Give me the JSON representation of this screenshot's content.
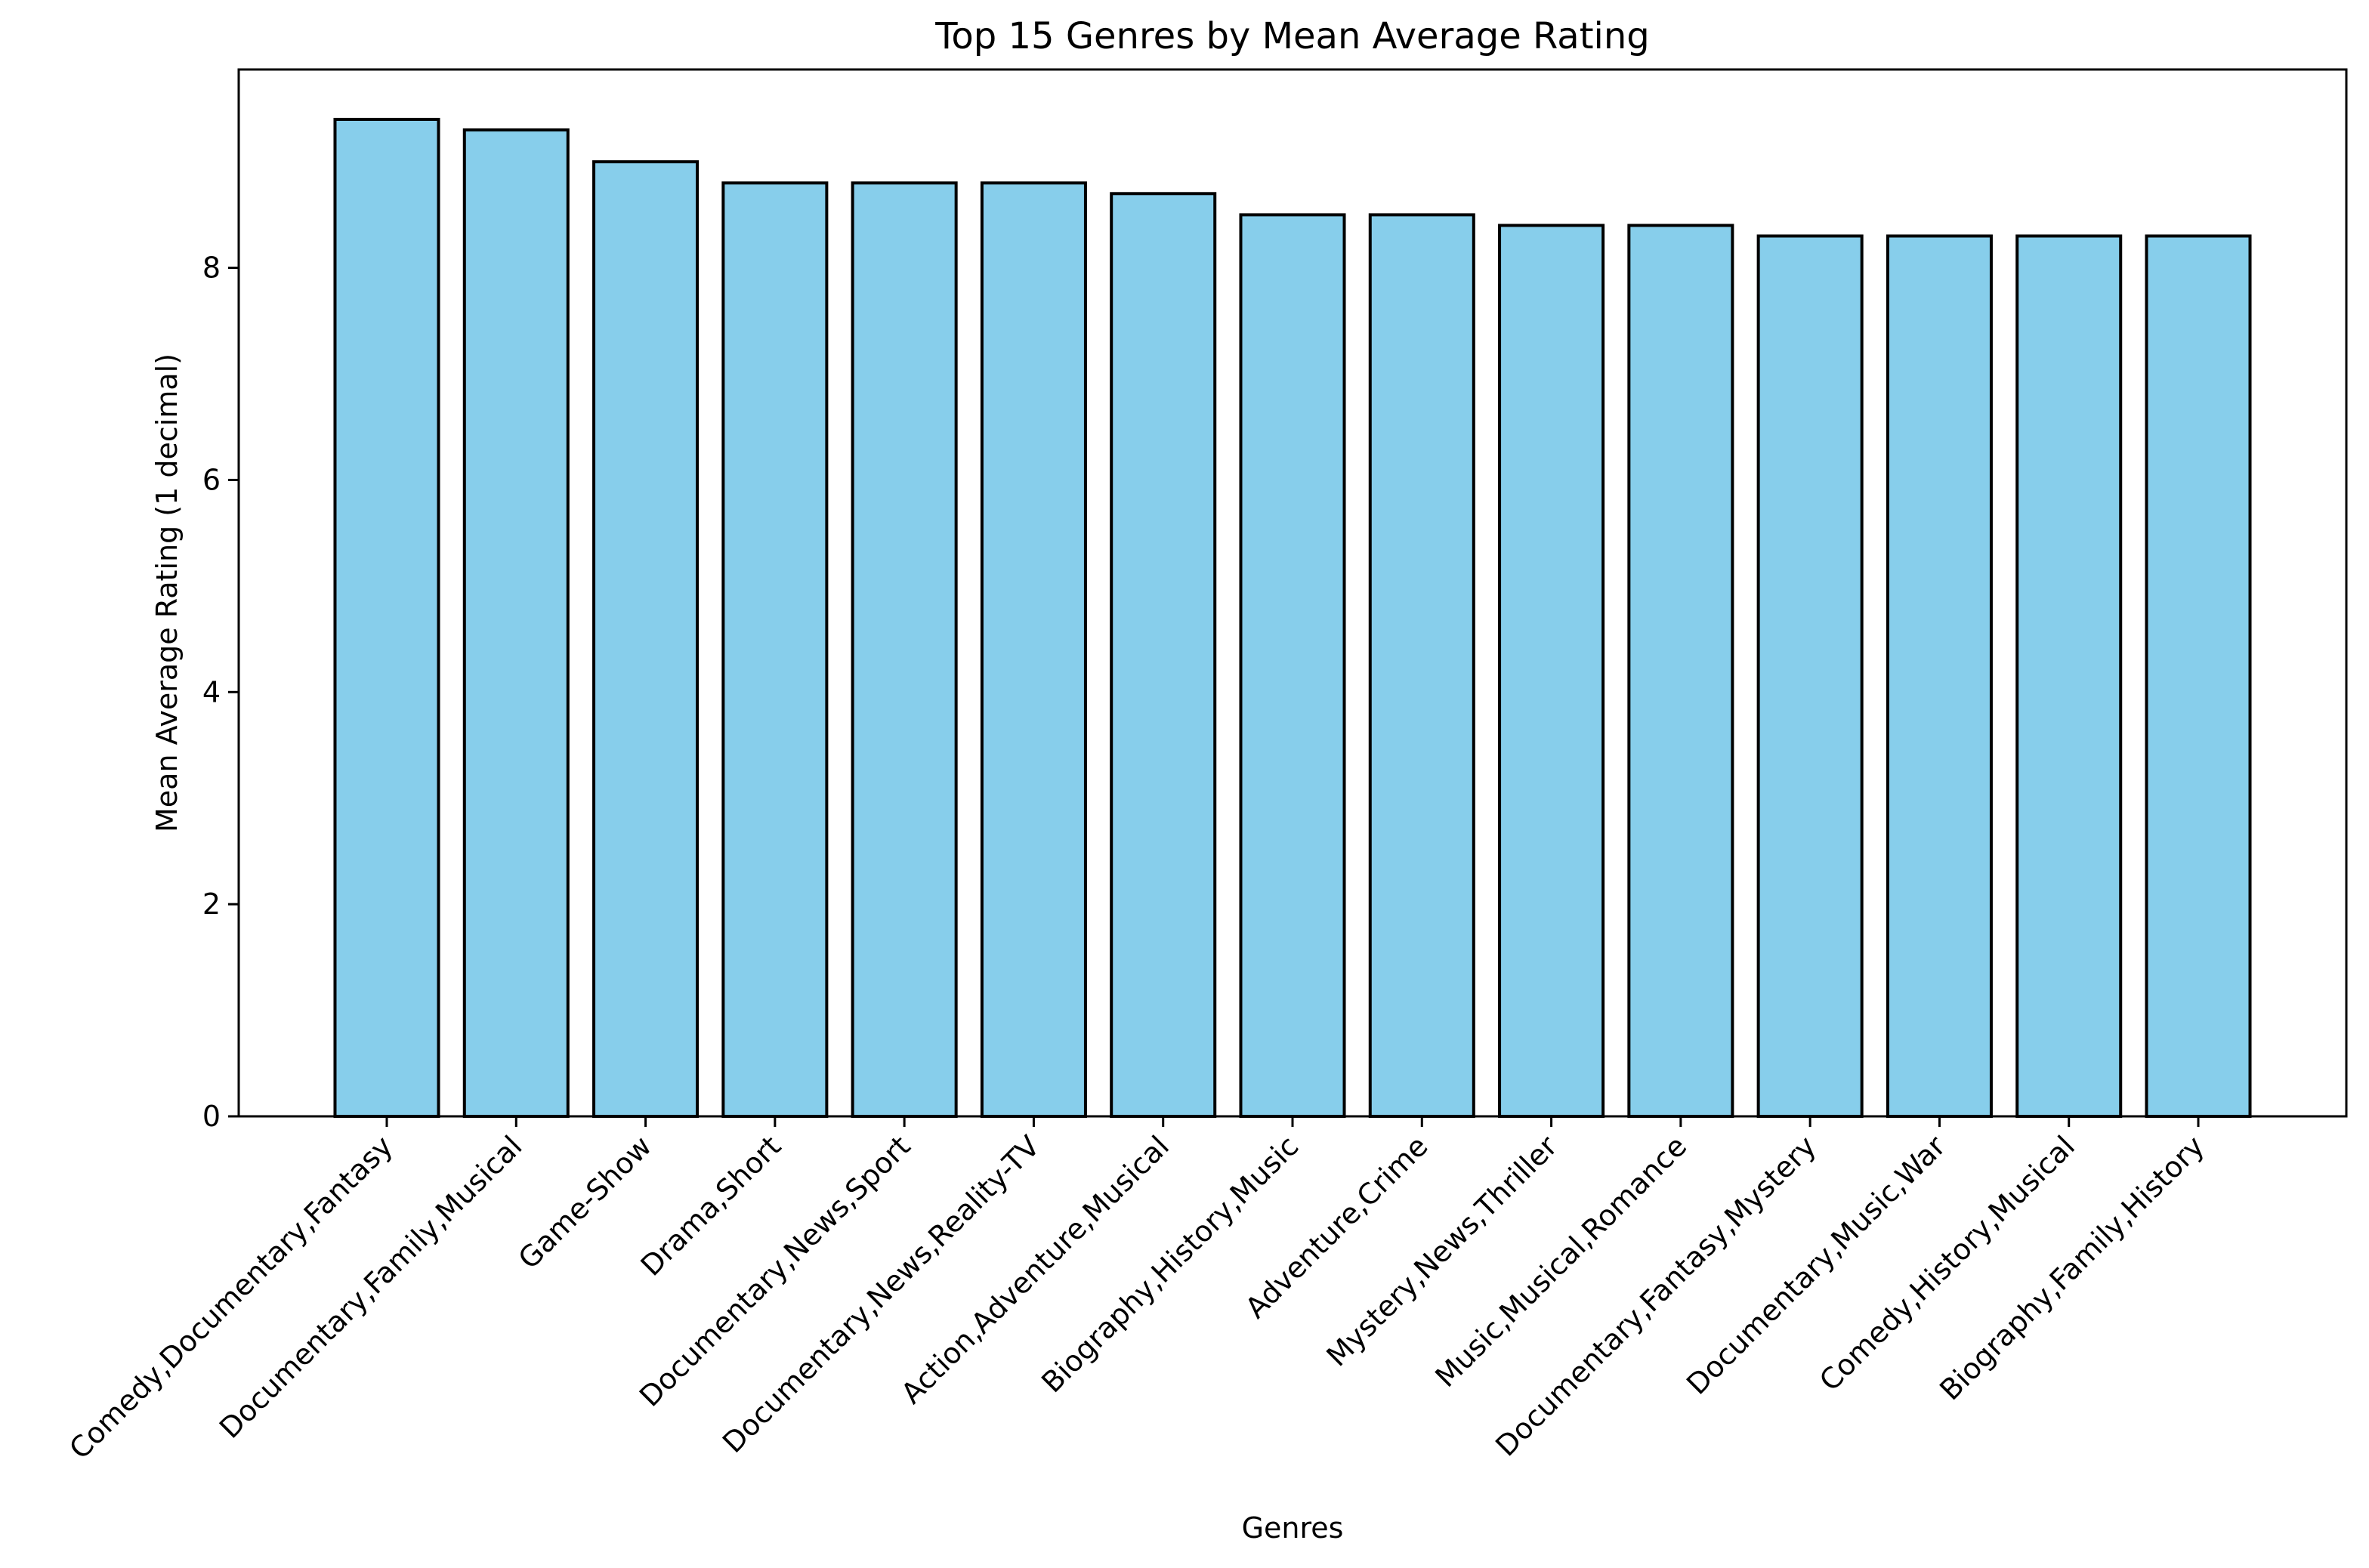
{
  "chart_data": {
    "type": "bar",
    "title": "Top 15 Genres by Mean Average Rating",
    "xlabel": "Genres",
    "ylabel": "Mean Average Rating (1 decimal)",
    "ylim": [
      0,
      9.87
    ],
    "yticks": [
      0,
      2,
      4,
      6,
      8
    ],
    "grid": false,
    "bar_color": "#87CEEB",
    "edge_color": "#000000",
    "categories": [
      "Comedy,Documentary,Fantasy",
      "Documentary,Family,Musical",
      "Game-Show",
      "Drama,Short",
      "Documentary,News,Sport",
      "Documentary,News,Reality-TV",
      "Action,Adventure,Musical",
      "Biography,History,Music",
      "Adventure,Crime",
      "Mystery,News,Thriller",
      "Music,Musical,Romance",
      "Documentary,Fantasy,Mystery",
      "Documentary,Music,War",
      "Comedy,History,Musical",
      "Biography,Family,History"
    ],
    "values": [
      9.4,
      9.3,
      9.0,
      8.8,
      8.8,
      8.8,
      8.7,
      8.5,
      8.5,
      8.4,
      8.4,
      8.3,
      8.3,
      8.3,
      8.3
    ]
  }
}
